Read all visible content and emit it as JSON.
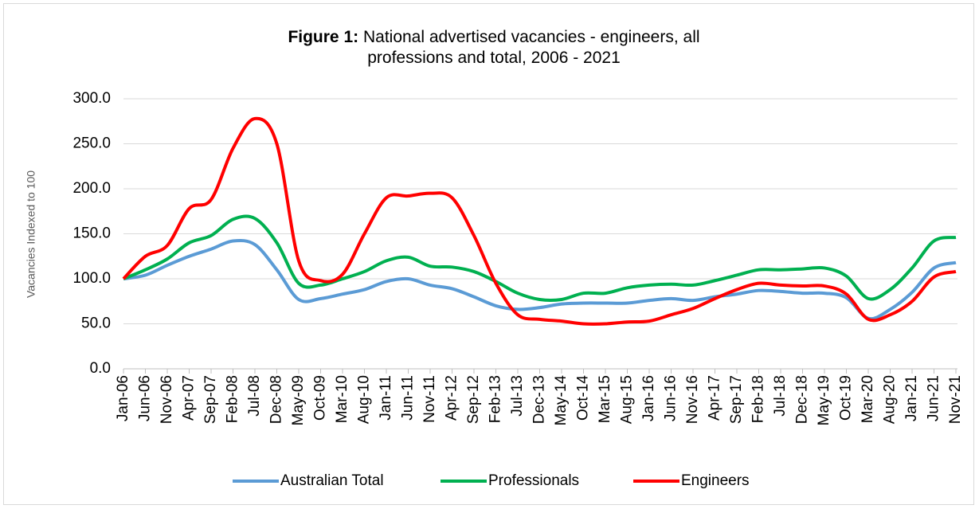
{
  "chart_data": {
    "type": "line",
    "title_label": "Figure 1:",
    "title": "National advertised vacancies - engineers, all professions and total, 2006 - 2021",
    "y_label": "Vacancies Indexed to 100",
    "categories": [
      "Jan-06",
      "Jun-06",
      "Nov-06",
      "Apr-07",
      "Sep-07",
      "Feb-08",
      "Jul-08",
      "Dec-08",
      "May-09",
      "Oct-09",
      "Mar-10",
      "Aug-10",
      "Jan-11",
      "Jun-11",
      "Nov-11",
      "Apr-12",
      "Sep-12",
      "Feb-13",
      "Jul-13",
      "Dec-13",
      "May-14",
      "Oct-14",
      "Mar-15",
      "Aug-15",
      "Jan-16",
      "Jun-16",
      "Nov-16",
      "Apr-17",
      "Sep-17",
      "Feb-18",
      "Jul-18",
      "Dec-18",
      "May-19",
      "Oct-19",
      "Mar-20",
      "Aug-20",
      "Jan-21",
      "Jun-21",
      "Nov-21"
    ],
    "series": [
      {
        "name": "Australian Total",
        "color": "#5b9bd5",
        "values": [
          100,
          104,
          115,
          125,
          133,
          142,
          138,
          110,
          77,
          78,
          83,
          88,
          97,
          100,
          93,
          89,
          80,
          70,
          66,
          68,
          72,
          73,
          73,
          73,
          76,
          78,
          76,
          80,
          83,
          87,
          86,
          84,
          84,
          79,
          56,
          66,
          85,
          112,
          118
        ]
      },
      {
        "name": "Professionals",
        "color": "#00b050",
        "values": [
          100,
          110,
          122,
          140,
          148,
          166,
          167,
          140,
          95,
          93,
          100,
          108,
          120,
          124,
          114,
          113,
          108,
          97,
          84,
          77,
          77,
          84,
          84,
          90,
          93,
          94,
          93,
          98,
          104,
          110,
          110,
          111,
          112,
          103,
          78,
          88,
          112,
          142,
          146
        ]
      },
      {
        "name": "Engineers",
        "color": "#ff0000",
        "values": [
          100,
          125,
          137,
          178,
          188,
          245,
          278,
          250,
          120,
          98,
          105,
          150,
          190,
          192,
          195,
          190,
          148,
          95,
          60,
          55,
          53,
          50,
          50,
          52,
          53,
          60,
          67,
          78,
          88,
          95,
          93,
          92,
          92,
          83,
          55,
          60,
          75,
          102,
          108
        ]
      }
    ],
    "ylim": [
      0,
      300
    ],
    "yticks": [
      {
        "value": 0,
        "label": "0.0"
      },
      {
        "value": 50,
        "label": "50.0"
      },
      {
        "value": 100,
        "label": "100.0"
      },
      {
        "value": 150,
        "label": "150.0"
      },
      {
        "value": 200,
        "label": "200.0"
      },
      {
        "value": 250,
        "label": "250.0"
      },
      {
        "value": 300,
        "label": "300.0"
      }
    ],
    "grid": true,
    "legend": "bottom"
  }
}
